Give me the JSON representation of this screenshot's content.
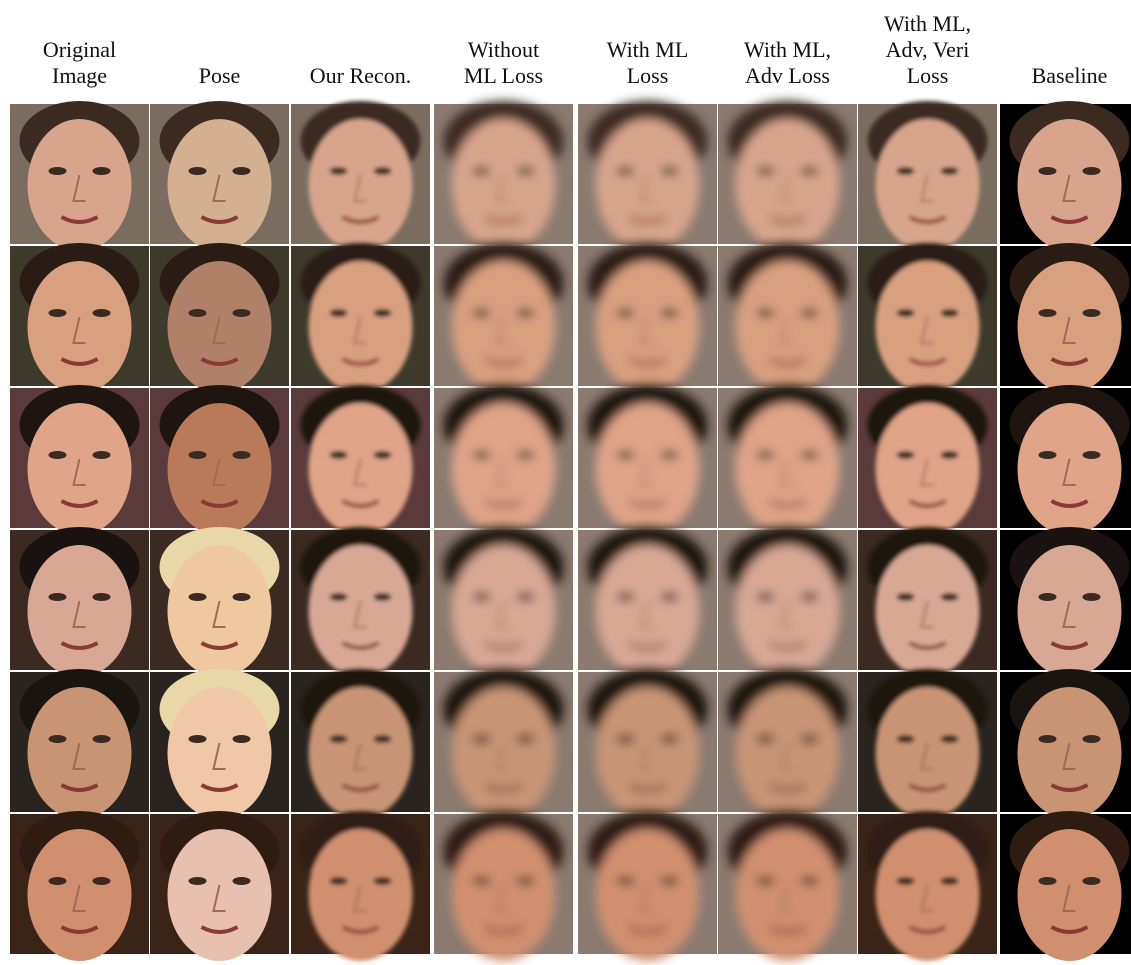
{
  "header": {
    "columns": [
      {
        "lines": [
          "Original",
          "Image"
        ]
      },
      {
        "lines": [
          "Pose"
        ]
      },
      {
        "lines": [
          "Our Recon."
        ]
      },
      {
        "lines": [
          "Without",
          "ML Loss"
        ]
      },
      {
        "lines": [
          "With ML",
          "Loss"
        ]
      },
      {
        "lines": [
          "With ML,",
          "Adv Loss"
        ]
      },
      {
        "lines": [
          "With ML,",
          "Adv, Veri",
          "Loss"
        ]
      },
      {
        "lines": [
          "Baseline"
        ]
      }
    ]
  }
}
